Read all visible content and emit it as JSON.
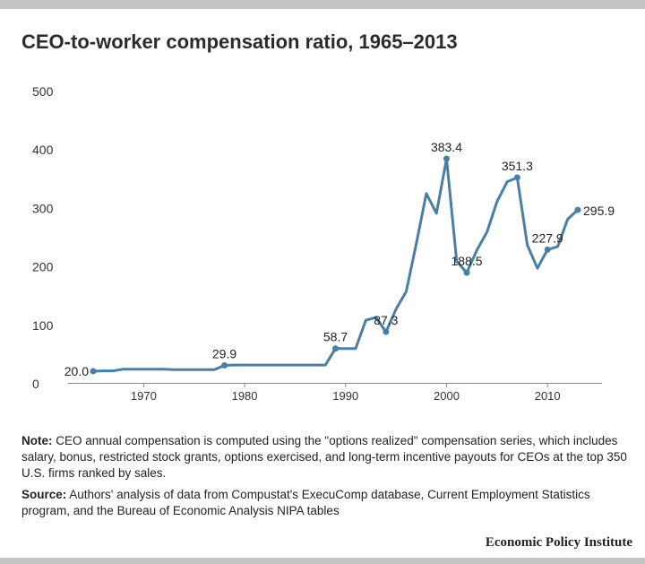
{
  "title": "CEO-to-worker compensation ratio, 1965–2013",
  "chart_data": {
    "type": "line",
    "title": "CEO-to-worker compensation ratio, 1965–2013",
    "xlabel": "",
    "ylabel": "",
    "xlim": [
      1964,
      2015
    ],
    "ylim": [
      0,
      500
    ],
    "x_ticks": [
      1970,
      1980,
      1990,
      2000,
      2010
    ],
    "y_ticks": [
      0,
      100,
      200,
      300,
      400,
      500
    ],
    "grid": false,
    "line_color": "#4a7fa3",
    "series": [
      {
        "x": [
          1965,
          1966,
          1967,
          1968,
          1969,
          1970,
          1971,
          1972,
          1973,
          1974,
          1975,
          1976,
          1977,
          1978,
          1979,
          1980,
          1981,
          1982,
          1983,
          1984,
          1985,
          1986,
          1987,
          1988,
          1989,
          1990,
          1991,
          1992,
          1993,
          1994,
          1995,
          1996,
          1997,
          1998,
          1999,
          2000,
          2001,
          2002,
          2003,
          2004,
          2005,
          2006,
          2007,
          2008,
          2009,
          2010,
          2011,
          2012,
          2013
        ],
        "y": [
          20.0,
          20.5,
          20.5,
          23.5,
          23.5,
          23.5,
          23.5,
          23.5,
          22.5,
          22.5,
          22.5,
          22.5,
          22.5,
          29.9,
          30.5,
          30.5,
          30.5,
          30.5,
          30.5,
          30.5,
          30.5,
          30.5,
          30.5,
          30.5,
          58.7,
          58.7,
          58.7,
          107,
          112,
          87.3,
          126,
          156,
          238,
          324,
          290,
          383.4,
          208,
          188.5,
          227,
          258,
          310,
          344,
          351.3,
          236,
          196,
          227.9,
          233,
          280,
          295.9
        ]
      }
    ],
    "annotations": [
      {
        "x": 1965,
        "y": 20.0,
        "label": "20.0",
        "pos": "left"
      },
      {
        "x": 1978,
        "y": 29.9,
        "label": "29.9",
        "pos": "above"
      },
      {
        "x": 1989,
        "y": 58.7,
        "label": "58.7",
        "pos": "above"
      },
      {
        "x": 1994,
        "y": 87.3,
        "label": "87.3",
        "pos": "above"
      },
      {
        "x": 2000,
        "y": 383.4,
        "label": "383.4",
        "pos": "above"
      },
      {
        "x": 2002,
        "y": 188.5,
        "label": "188.5",
        "pos": "above"
      },
      {
        "x": 2007,
        "y": 351.3,
        "label": "351.3",
        "pos": "above"
      },
      {
        "x": 2010,
        "y": 227.9,
        "label": "227.9",
        "pos": "above"
      },
      {
        "x": 2013,
        "y": 295.9,
        "label": "295.9",
        "pos": "right"
      }
    ]
  },
  "note": {
    "label": "Note:",
    "text": " CEO annual compensation is computed using the \"options realized\" compensation series, which includes salary, bonus, restricted stock grants, options exercised, and long-term incentive payouts for CEOs at the top 350 U.S. firms ranked by sales."
  },
  "source": {
    "label": "Source:",
    "text": " Authors' analysis of data from Compustat's ExecuComp database, Current Employment Statistics program, and the Bureau of Economic Analysis NIPA tables"
  },
  "brand": "Economic Policy Institute"
}
